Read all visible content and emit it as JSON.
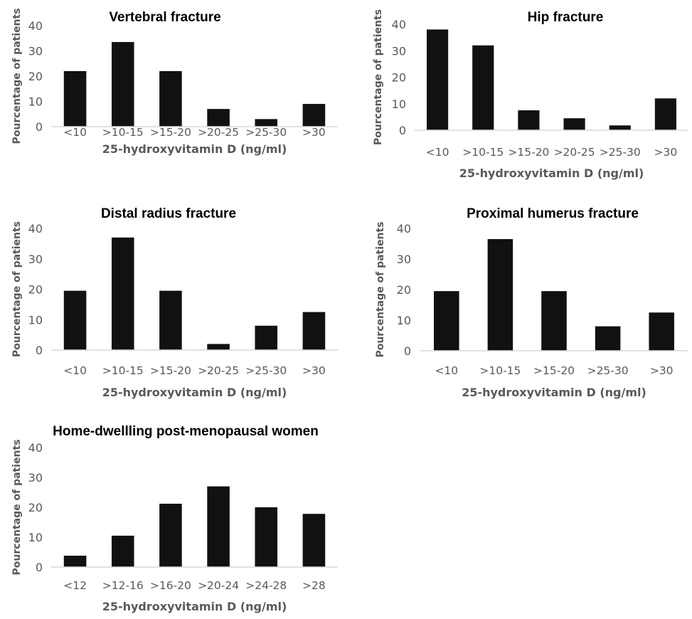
{
  "chart_data": [
    {
      "type": "bar",
      "title": "Vertebral fracture",
      "xlabel": "25-hydroxyvitamin D (ng/ml)",
      "ylabel": "Pourcentage of patients",
      "categories": [
        "<10",
        ">10-15",
        ">15-20",
        ">20-25",
        ">25-30",
        ">30"
      ],
      "values": [
        22,
        33.5,
        22,
        7,
        3,
        9
      ],
      "ylim": [
        0,
        40
      ],
      "yticks": [
        0,
        10,
        20,
        30,
        40
      ],
      "bar_color": "#111111",
      "grid": false,
      "legend": "none"
    },
    {
      "type": "bar",
      "title": "Hip fracture",
      "xlabel": "25-hydroxyvitamin D (ng/ml)",
      "ylabel": "Pourcentage of patients",
      "categories": [
        "<10",
        ">10-15",
        ">15-20",
        ">20-25",
        ">25-30",
        ">30"
      ],
      "values": [
        38,
        32,
        7.5,
        4.5,
        1.8,
        12
      ],
      "ylim": [
        0,
        40
      ],
      "yticks": [
        0,
        10,
        20,
        30,
        40
      ],
      "bar_color": "#111111",
      "grid": false,
      "legend": "none"
    },
    {
      "type": "bar",
      "title": "Distal radius fracture",
      "xlabel": "25-hydroxyvitamin D (ng/ml)",
      "ylabel": "Pourcentage of patients",
      "categories": [
        "<10",
        ">10-15",
        ">15-20",
        ">20-25",
        ">25-30",
        ">30"
      ],
      "values": [
        19.5,
        37,
        19.5,
        2,
        8,
        12.5
      ],
      "ylim": [
        0,
        40
      ],
      "yticks": [
        0,
        10,
        20,
        30,
        40
      ],
      "bar_color": "#111111",
      "grid": false,
      "legend": "none"
    },
    {
      "type": "bar",
      "title": "Proximal humerus fracture",
      "xlabel": "25-hydroxyvitamin D (ng/ml)",
      "ylabel": "Pourcentage of patients",
      "categories": [
        "<10",
        ">10-15",
        ">15-20",
        ">25-30",
        ">30"
      ],
      "values": [
        19.5,
        36.5,
        19.5,
        8,
        12.5
      ],
      "ylim": [
        0,
        40
      ],
      "yticks": [
        0,
        10,
        20,
        30,
        40
      ],
      "bar_color": "#111111",
      "grid": false,
      "legend": "none"
    },
    {
      "type": "bar",
      "title": "Home-dwellling post-menopausal women",
      "xlabel": "25-hydroxyvitamin D (ng/ml)",
      "ylabel": "Pourcentage of patients",
      "categories": [
        "<12",
        ">12-16",
        ">16-20",
        ">20-24",
        ">24-28",
        ">28"
      ],
      "values": [
        3.8,
        10.5,
        21.2,
        27,
        20,
        17.8
      ],
      "ylim": [
        0,
        40
      ],
      "yticks": [
        0,
        10,
        20,
        30,
        40
      ],
      "bar_color": "#111111",
      "grid": false,
      "legend": "none"
    }
  ]
}
